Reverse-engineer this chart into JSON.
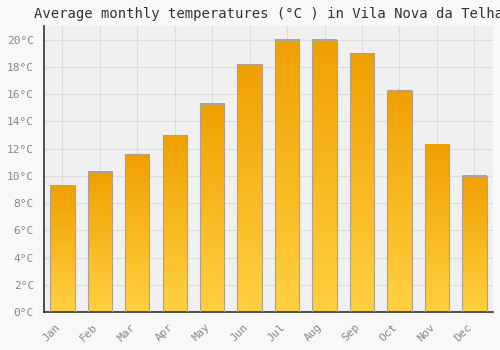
{
  "title": "Average monthly temperatures (°C ) in Vila Nova da Telha",
  "months": [
    "Jan",
    "Feb",
    "Mar",
    "Apr",
    "May",
    "Jun",
    "Jul",
    "Aug",
    "Sep",
    "Oct",
    "Nov",
    "Dec"
  ],
  "values": [
    9.3,
    10.3,
    11.6,
    13.0,
    15.3,
    18.2,
    20.0,
    20.0,
    19.0,
    16.3,
    12.3,
    10.0
  ],
  "bar_color_bottom": "#FFD040",
  "bar_color_top": "#F0A000",
  "bar_edge_color": "#B0A090",
  "background_color": "#f8f8f8",
  "plot_bg_color": "#f0f0f0",
  "grid_color": "#dddddd",
  "ytick_labels": [
    "0°C",
    "2°C",
    "4°C",
    "6°C",
    "8°C",
    "10°C",
    "12°C",
    "14°C",
    "16°C",
    "18°C",
    "20°C"
  ],
  "ytick_values": [
    0,
    2,
    4,
    6,
    8,
    10,
    12,
    14,
    16,
    18,
    20
  ],
  "ylim": [
    0,
    21
  ],
  "title_fontsize": 10,
  "tick_fontsize": 8,
  "label_color": "#888888",
  "spine_color": "#333333",
  "bar_width": 0.65
}
